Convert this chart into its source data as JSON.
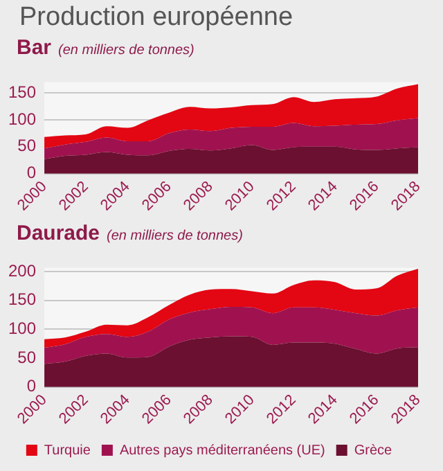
{
  "chart_data": [
    {
      "type": "area",
      "title": "Bar",
      "subtitle": "(en milliers de tonnes)",
      "annotations": [
        "Production européenne"
      ],
      "stacked": true,
      "x": [
        2000,
        2001,
        2002,
        2003,
        2004,
        2005,
        2006,
        2007,
        2008,
        2009,
        2010,
        2011,
        2012,
        2013,
        2014,
        2015,
        2016,
        2017,
        2018
      ],
      "xlim": [
        2000,
        2018
      ],
      "xticks": [
        2000,
        2002,
        2004,
        2006,
        2008,
        2010,
        2012,
        2014,
        2016,
        2018
      ],
      "ylim": [
        0,
        170
      ],
      "yticks": [
        0,
        50,
        100,
        150
      ],
      "grid": "y",
      "series": [
        {
          "color": "#6b1030",
          "values": [
            27,
            33,
            35,
            40,
            35,
            34,
            42,
            46,
            43,
            47,
            53,
            44,
            49,
            50,
            50,
            45,
            44,
            47,
            49
          ]
        },
        {
          "color": "#a0124f",
          "values": [
            20,
            21,
            24,
            27,
            25,
            26,
            33,
            36,
            36,
            38,
            34,
            43,
            45,
            38,
            39,
            46,
            48,
            52,
            54
          ]
        },
        {
          "color": "#e30613",
          "values": [
            21,
            17,
            14,
            21,
            25,
            39,
            38,
            42,
            42,
            38,
            40,
            42,
            48,
            45,
            49,
            49,
            51,
            59,
            63
          ]
        }
      ]
    },
    {
      "type": "area",
      "title": "Daurade",
      "subtitle": "(en milliers de tonnes)",
      "stacked": true,
      "x": [
        2000,
        2001,
        2002,
        2003,
        2004,
        2005,
        2006,
        2007,
        2008,
        2009,
        2010,
        2011,
        2012,
        2013,
        2014,
        2015,
        2016,
        2017,
        2018
      ],
      "xlim": [
        2000,
        2018
      ],
      "xticks": [
        2000,
        2002,
        2004,
        2006,
        2008,
        2010,
        2012,
        2014,
        2016,
        2018
      ],
      "ylim": [
        0,
        207
      ],
      "yticks": [
        0,
        50,
        100,
        150,
        200
      ],
      "grid": "y",
      "legend": "bottom",
      "series": [
        {
          "name": "Grèce",
          "color": "#6b1030",
          "values": [
            40,
            44,
            54,
            58,
            51,
            52,
            70,
            82,
            86,
            88,
            87,
            73,
            77,
            77,
            75,
            66,
            58,
            67,
            69
          ]
        },
        {
          "name": "Autres pays méditerranéens (UE)",
          "color": "#a0124f",
          "values": [
            28,
            30,
            33,
            34,
            36,
            44,
            47,
            47,
            49,
            51,
            51,
            55,
            61,
            61,
            59,
            62,
            66,
            66,
            69
          ]
        },
        {
          "name": "Turquie",
          "color": "#e30613",
          "values": [
            15,
            12,
            9,
            16,
            20,
            25,
            25,
            31,
            34,
            31,
            28,
            34,
            39,
            47,
            48,
            41,
            47,
            60,
            67
          ]
        }
      ]
    }
  ]
}
